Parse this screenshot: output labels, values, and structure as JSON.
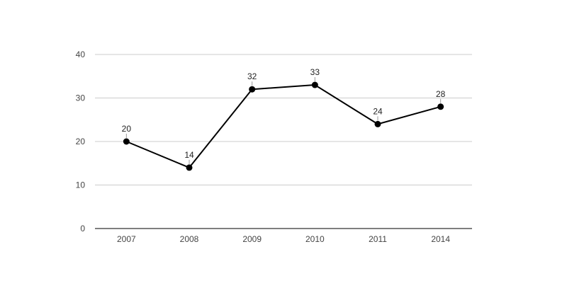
{
  "chart_data": {
    "type": "line",
    "title": "",
    "xlabel": "",
    "ylabel": "",
    "categories": [
      "2007",
      "2008",
      "2009",
      "2010",
      "2011",
      "2014"
    ],
    "series": [
      {
        "values": [
          20,
          14,
          32,
          33,
          24,
          28
        ]
      }
    ],
    "data_labels": [
      "20",
      "14",
      "32",
      "33",
      "24",
      "28"
    ],
    "ylim": [
      0,
      40
    ],
    "yticks": [
      0,
      10,
      20,
      30,
      40
    ],
    "ytick_labels": [
      "0",
      "10",
      "20",
      "30",
      "40"
    ],
    "grid": true,
    "legend": "none",
    "colors": {
      "line": "#000000",
      "marker": "#000000",
      "grid": "#cccccc",
      "axis": "#333333",
      "tick_text": "#444444",
      "label_text": "#222222"
    }
  }
}
